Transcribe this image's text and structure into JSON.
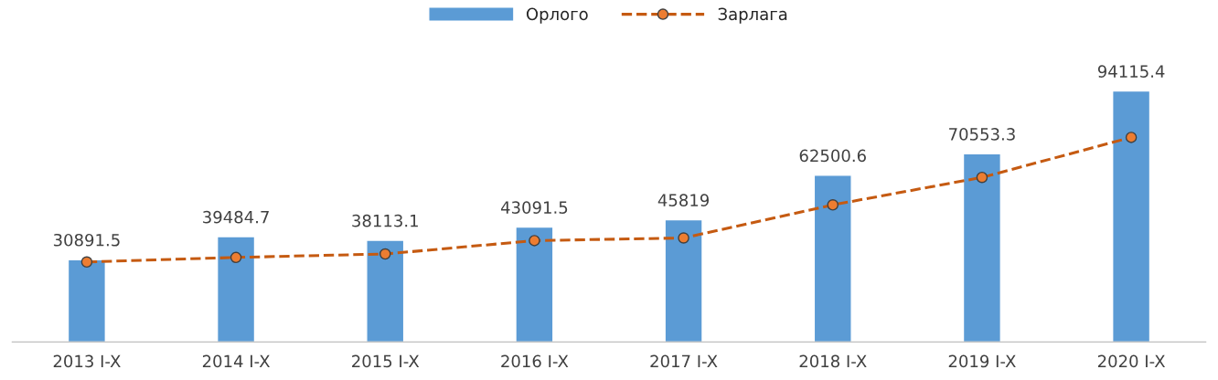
{
  "chart_data": {
    "type": "bar",
    "categories": [
      "2013 I-X",
      "2014 I-X",
      "2015 I-X",
      "2016 I-X",
      "2017 I-X",
      "2018 I-X",
      "2019 I-X",
      "2020 I-X"
    ],
    "series": [
      {
        "name": "Орлого",
        "color": "#5b9bd5",
        "values": [
          30891.5,
          39484.7,
          38113.1,
          43091.5,
          45819,
          62500.6,
          70553.3,
          94115.4
        ],
        "value_labels": [
          "30891.5",
          "39484.7",
          "38113.1",
          "43091.5",
          "45819",
          "62500.6",
          "70553.3",
          "94115.4"
        ]
      },
      {
        "name": "Зарлага",
        "type": "line",
        "color": "#c55a11",
        "line_style": "dashed",
        "marker": "circle",
        "values": [
          30000,
          31700,
          33000,
          38000,
          39000,
          51400,
          61700,
          76700
        ]
      }
    ],
    "legend": "top",
    "grid": false,
    "tick_labels": "x"
  }
}
